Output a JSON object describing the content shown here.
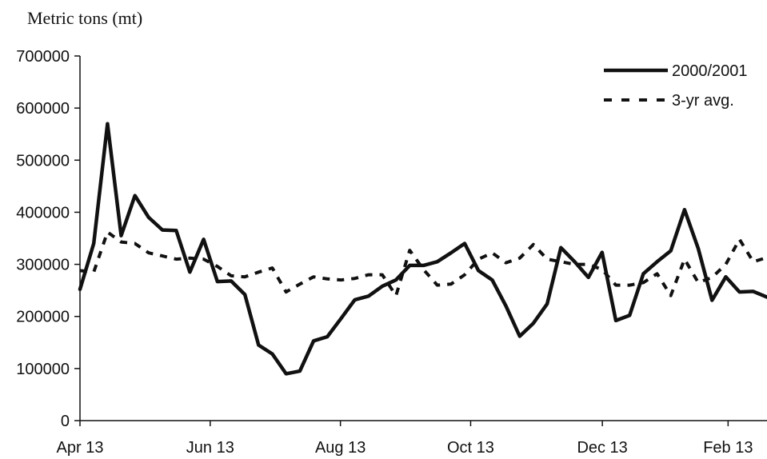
{
  "chart_data": {
    "type": "line",
    "title": "",
    "ylabel": "Metric tons (mt)",
    "xlabel": "",
    "ylim": [
      0,
      700000
    ],
    "yticks": [
      0,
      100000,
      200000,
      300000,
      400000,
      500000,
      600000,
      700000
    ],
    "xticks": [
      "Apr 13",
      "Jun 13",
      "Aug 13",
      "Oct 13",
      "Dec 13",
      "Feb 13"
    ],
    "xtick_weeks": [
      0,
      8.7,
      17.4,
      26.1,
      34.9,
      43.3
    ],
    "x_range_weeks": [
      0,
      45.9
    ],
    "grid": false,
    "legend": {
      "placement": "top-right"
    },
    "series": [
      {
        "name": "2000/2001",
        "style": "solid",
        "color": "#111111",
        "values": [
          252000,
          340000,
          570000,
          355000,
          432000,
          390000,
          366000,
          365000,
          285000,
          348000,
          267000,
          268000,
          242000,
          145000,
          128000,
          90000,
          95000,
          153000,
          161000,
          196000,
          232000,
          239000,
          258000,
          270000,
          298000,
          298000,
          305000,
          322000,
          340000,
          288000,
          270000,
          220000,
          162000,
          187000,
          224000,
          332000,
          305000,
          275000,
          323000,
          192000,
          202000,
          282000,
          305000,
          326000,
          405000,
          330000,
          231000,
          276000,
          247000,
          248000,
          237000
        ]
      },
      {
        "name": "3-yr avg.",
        "style": "dashed",
        "color": "#111111",
        "values": [
          288000,
          285000,
          362000,
          343000,
          340000,
          322000,
          316000,
          310000,
          312000,
          310000,
          296000,
          278000,
          276000,
          285000,
          293000,
          247000,
          262000,
          276000,
          272000,
          270000,
          273000,
          280000,
          280000,
          240000,
          327000,
          290000,
          260000,
          262000,
          280000,
          310000,
          322000,
          303000,
          312000,
          338000,
          310000,
          305000,
          300000,
          300000,
          290000,
          260000,
          260000,
          265000,
          282000,
          240000,
          310000,
          265000,
          275000,
          300000,
          348000,
          305000,
          313000
        ]
      }
    ]
  }
}
